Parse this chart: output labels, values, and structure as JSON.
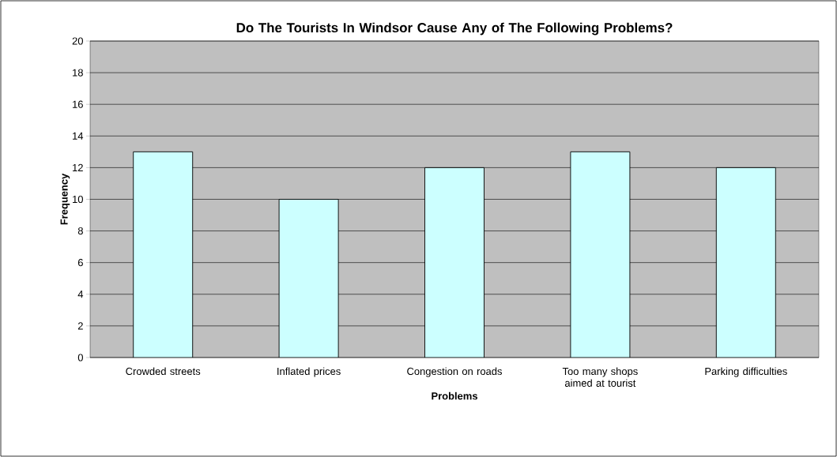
{
  "chart_data": {
    "type": "bar",
    "title": "Do The Tourists In Windsor Cause Any of The Following Problems?",
    "xlabel": "Problems",
    "ylabel": "Frequency",
    "categories": [
      "Crowded streets",
      "Inflated prices",
      "Congestion on roads",
      "Too many shops aimed at tourist",
      "Parking difficulties"
    ],
    "values": [
      13,
      10,
      12,
      13,
      12
    ],
    "color": "#ccffff",
    "ylim": [
      0,
      20
    ],
    "yticks": [
      0,
      2,
      4,
      6,
      8,
      10,
      12,
      14,
      16,
      18,
      20
    ],
    "grid": "y"
  }
}
